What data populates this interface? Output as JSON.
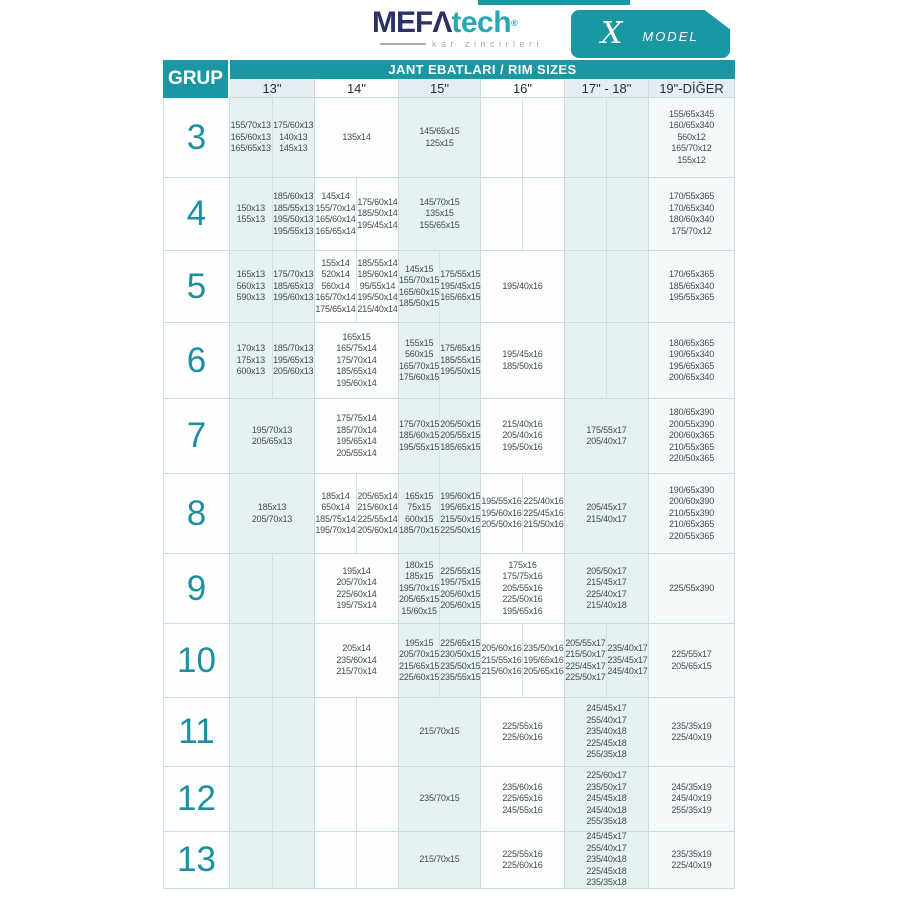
{
  "colors": {
    "teal": "#1b96a3",
    "navy": "#2b3166",
    "logo_teal": "#2ba7b0",
    "cell_tint": "#e6f1f1",
    "group_number": "#1d8fa0"
  },
  "header": {
    "brand": {
      "name_primary": "MEFΛ",
      "name_secondary": "tech",
      "trademark": "®",
      "tagline": "kar zincirleri"
    },
    "badge": {
      "model_letter": "X",
      "model_label": "MODEL"
    }
  },
  "table": {
    "grup_label": "GRUP",
    "title": "JANT EBATLARI / RIM SIZES",
    "columns": [
      "13\"",
      "14\"",
      "15\"",
      "16\"",
      "17\" - 18\"",
      "19\"-DİĞER"
    ],
    "rows": [
      {
        "group": "3",
        "cells": [
          {
            "type": "split",
            "left": [
              "155/70x13",
              "165/60x13",
              "165/65x13"
            ],
            "right": [
              "175/60x13",
              "140x13",
              "145x13"
            ]
          },
          {
            "type": "merged",
            "sizes": [
              "135x14"
            ]
          },
          {
            "type": "merged",
            "sizes": [
              "145/65x15",
              "125x15"
            ]
          },
          {
            "type": "split",
            "left": [],
            "right": []
          },
          {
            "type": "split",
            "left": [],
            "right": []
          },
          {
            "type": "merged",
            "sizes": [
              "155/65x345",
              "160/65x340",
              "560x12",
              "165/70x12",
              "155x12"
            ]
          }
        ]
      },
      {
        "group": "4",
        "cells": [
          {
            "type": "split",
            "left": [
              "150x13",
              "155x13"
            ],
            "right": [
              "185/60x13",
              "185/55x13",
              "195/50x13",
              "195/55x13"
            ]
          },
          {
            "type": "split",
            "left": [
              "145x14",
              "155/70x14",
              "165/60x14",
              "165/65x14"
            ],
            "right": [
              "175/60x14",
              "185/50x14",
              "195/45x14"
            ]
          },
          {
            "type": "merged",
            "sizes": [
              "145/70x15",
              "135x15",
              "155/65x15"
            ]
          },
          {
            "type": "split",
            "left": [],
            "right": []
          },
          {
            "type": "split",
            "left": [],
            "right": []
          },
          {
            "type": "merged",
            "sizes": [
              "170/55x365",
              "170/65x340",
              "180/60x340",
              "175/70x12"
            ]
          }
        ]
      },
      {
        "group": "5",
        "cells": [
          {
            "type": "split",
            "left": [
              "165x13",
              "560x13",
              "590x13"
            ],
            "right": [
              "175/70x13",
              "185/65x13",
              "195/60x13"
            ]
          },
          {
            "type": "split",
            "left": [
              "155x14",
              "520x14",
              "560x14",
              "165/70x14",
              "175/65x14"
            ],
            "right": [
              "185/55x14",
              "185/60x14",
              "95/55x14",
              "195/50x14",
              "215/40x14"
            ]
          },
          {
            "type": "split",
            "left": [
              "145x15",
              "155/70x15",
              "165/60x15",
              "185/50x15"
            ],
            "right": [
              "175/55x15",
              "195/45x15",
              "165/65x15"
            ]
          },
          {
            "type": "merged",
            "sizes": [
              "195/40x16"
            ]
          },
          {
            "type": "split",
            "left": [],
            "right": []
          },
          {
            "type": "merged",
            "sizes": [
              "170/65x365",
              "185/65x340",
              "195/55x365"
            ]
          }
        ]
      },
      {
        "group": "6",
        "cells": [
          {
            "type": "split",
            "left": [
              "170x13",
              "175x13",
              "600x13"
            ],
            "right": [
              "185/70x13",
              "195/65x13",
              "205/60x13"
            ]
          },
          {
            "type": "merged",
            "sizes": [
              "165x15",
              "165/75x14",
              "175/70x14",
              "185/65x14",
              "195/60x14"
            ]
          },
          {
            "type": "split",
            "left": [
              "155x15",
              "560x15",
              "165/70x15",
              "175/60x15"
            ],
            "right": [
              "175/65x15",
              "185/55x15",
              "195/50x15"
            ]
          },
          {
            "type": "merged",
            "sizes": [
              "195/45x16",
              "185/50x16"
            ]
          },
          {
            "type": "split",
            "left": [],
            "right": []
          },
          {
            "type": "merged",
            "sizes": [
              "180/65x365",
              "190/65x340",
              "195/65x365",
              "200/65x340"
            ]
          }
        ]
      },
      {
        "group": "7",
        "cells": [
          {
            "type": "merged",
            "sizes": [
              "195/70x13",
              "205/65x13"
            ]
          },
          {
            "type": "merged",
            "sizes": [
              "175/75x14",
              "185/70x14",
              "195/65x14",
              "205/55x14"
            ]
          },
          {
            "type": "split",
            "left": [
              "175/70x15",
              "185/60x15",
              "195/55x15"
            ],
            "right": [
              "205/50x15",
              "205/55x15",
              "185/65x15"
            ]
          },
          {
            "type": "merged",
            "sizes": [
              "215/40x16",
              "205/40x16",
              "195/50x16"
            ]
          },
          {
            "type": "merged",
            "sizes": [
              "175/55x17",
              "205/40x17"
            ]
          },
          {
            "type": "merged",
            "sizes": [
              "180/65x390",
              "200/55x390",
              "200/60x365",
              "210/55x365",
              "220/50x365"
            ]
          }
        ]
      },
      {
        "group": "8",
        "cells": [
          {
            "type": "merged",
            "sizes": [
              "185x13",
              "205/70x13"
            ]
          },
          {
            "type": "split",
            "left": [
              "185x14",
              "650x14",
              "185/75x14",
              "195/70x14"
            ],
            "right": [
              "205/65x14",
              "215/60x14",
              "225/55x14",
              "205/60x14"
            ]
          },
          {
            "type": "split",
            "left": [
              "165x15",
              "75x15",
              "600x15",
              "185/70x15"
            ],
            "right": [
              "195/60x15",
              "195/65x15",
              "215/50x15",
              "225/50x15"
            ]
          },
          {
            "type": "split",
            "left": [
              "195/55x16",
              "195/60x16",
              "205/50x16"
            ],
            "right": [
              "225/40x16",
              "225/45x16",
              "215/50x16"
            ]
          },
          {
            "type": "merged",
            "sizes": [
              "205/45x17",
              "215/40x17"
            ]
          },
          {
            "type": "merged",
            "sizes": [
              "190/65x390",
              "200/60x390",
              "210/55x390",
              "210/65x365",
              "220/55x365"
            ]
          }
        ]
      },
      {
        "group": "9",
        "cells": [
          {
            "type": "split",
            "left": [],
            "right": []
          },
          {
            "type": "merged",
            "sizes": [
              "195x14",
              "205/70x14",
              "225/60x14",
              "195/75x14"
            ]
          },
          {
            "type": "split",
            "left": [
              "180x15",
              "185x15",
              "195/70x15",
              "205/65x15",
              "15/60x15"
            ],
            "right": [
              "225/55x15",
              "195/75x15",
              "205/60x15",
              "205/60x15"
            ]
          },
          {
            "type": "merged",
            "sizes": [
              "175x16",
              "175/75x16",
              "205/55x16",
              "225/50x16",
              "195/65x16"
            ]
          },
          {
            "type": "merged",
            "sizes": [
              "205/50x17",
              "215/45x17",
              "225/40x17",
              "215/40x18"
            ]
          },
          {
            "type": "merged",
            "sizes": [
              "225/55x390"
            ]
          }
        ]
      },
      {
        "group": "10",
        "cells": [
          {
            "type": "split",
            "left": [],
            "right": []
          },
          {
            "type": "merged",
            "sizes": [
              "205x14",
              "235/60x14",
              "215/70x14"
            ]
          },
          {
            "type": "split",
            "left": [
              "195x15",
              "205/70x15",
              "215/65x15",
              "225/60x15"
            ],
            "right": [
              "225/65x15",
              "230/50x15",
              "235/50x15",
              "235/55x15"
            ]
          },
          {
            "type": "split",
            "left": [
              "205/60x16",
              "215/55x16",
              "215/60x16"
            ],
            "right": [
              "235/50x16",
              "195/65x16",
              "205/65x16"
            ]
          },
          {
            "type": "split",
            "left": [
              "205/55x17",
              "215/50x17",
              "225/45x17",
              "225/50x17"
            ],
            "right": [
              "235/40x17",
              "235/45x17",
              "245/40x17"
            ]
          },
          {
            "type": "merged",
            "sizes": [
              "225/55x17",
              "205/65x15"
            ]
          }
        ]
      },
      {
        "group": "11",
        "cells": [
          {
            "type": "split",
            "left": [],
            "right": []
          },
          {
            "type": "split",
            "left": [],
            "right": []
          },
          {
            "type": "merged",
            "sizes": [
              "215/70x15"
            ]
          },
          {
            "type": "merged",
            "sizes": [
              "225/55x16",
              "225/60x16"
            ]
          },
          {
            "type": "merged",
            "sizes": [
              "245/45x17",
              "255/40x17",
              "235/40x18",
              "225/45x18",
              "255/35x18"
            ]
          },
          {
            "type": "merged",
            "sizes": [
              "235/35x19",
              "225/40x19"
            ]
          }
        ]
      },
      {
        "group": "12",
        "cells": [
          {
            "type": "split",
            "left": [],
            "right": []
          },
          {
            "type": "split",
            "left": [],
            "right": []
          },
          {
            "type": "merged",
            "sizes": [
              "235/70x15"
            ]
          },
          {
            "type": "merged",
            "sizes": [
              "235/60x16",
              "225/65x16",
              "245/55x16"
            ]
          },
          {
            "type": "merged",
            "sizes": [
              "225/60x17",
              "235/50x17",
              "245/45x18",
              "245/40x18",
              "255/35x18"
            ]
          },
          {
            "type": "merged",
            "sizes": [
              "245/35x19",
              "245/40x19",
              "255/35x19"
            ]
          }
        ]
      },
      {
        "group": "13",
        "cells": [
          {
            "type": "split",
            "left": [],
            "right": []
          },
          {
            "type": "split",
            "left": [],
            "right": []
          },
          {
            "type": "merged",
            "sizes": [
              "215/70x15"
            ]
          },
          {
            "type": "merged",
            "sizes": [
              "225/55x16",
              "225/60x16"
            ]
          },
          {
            "type": "merged",
            "sizes": [
              "245/45x17",
              "255/40x17",
              "235/40x18",
              "225/45x18",
              "235/35x18"
            ]
          },
          {
            "type": "merged",
            "sizes": [
              "235/35x19",
              "225/40x19"
            ]
          }
        ]
      }
    ]
  }
}
